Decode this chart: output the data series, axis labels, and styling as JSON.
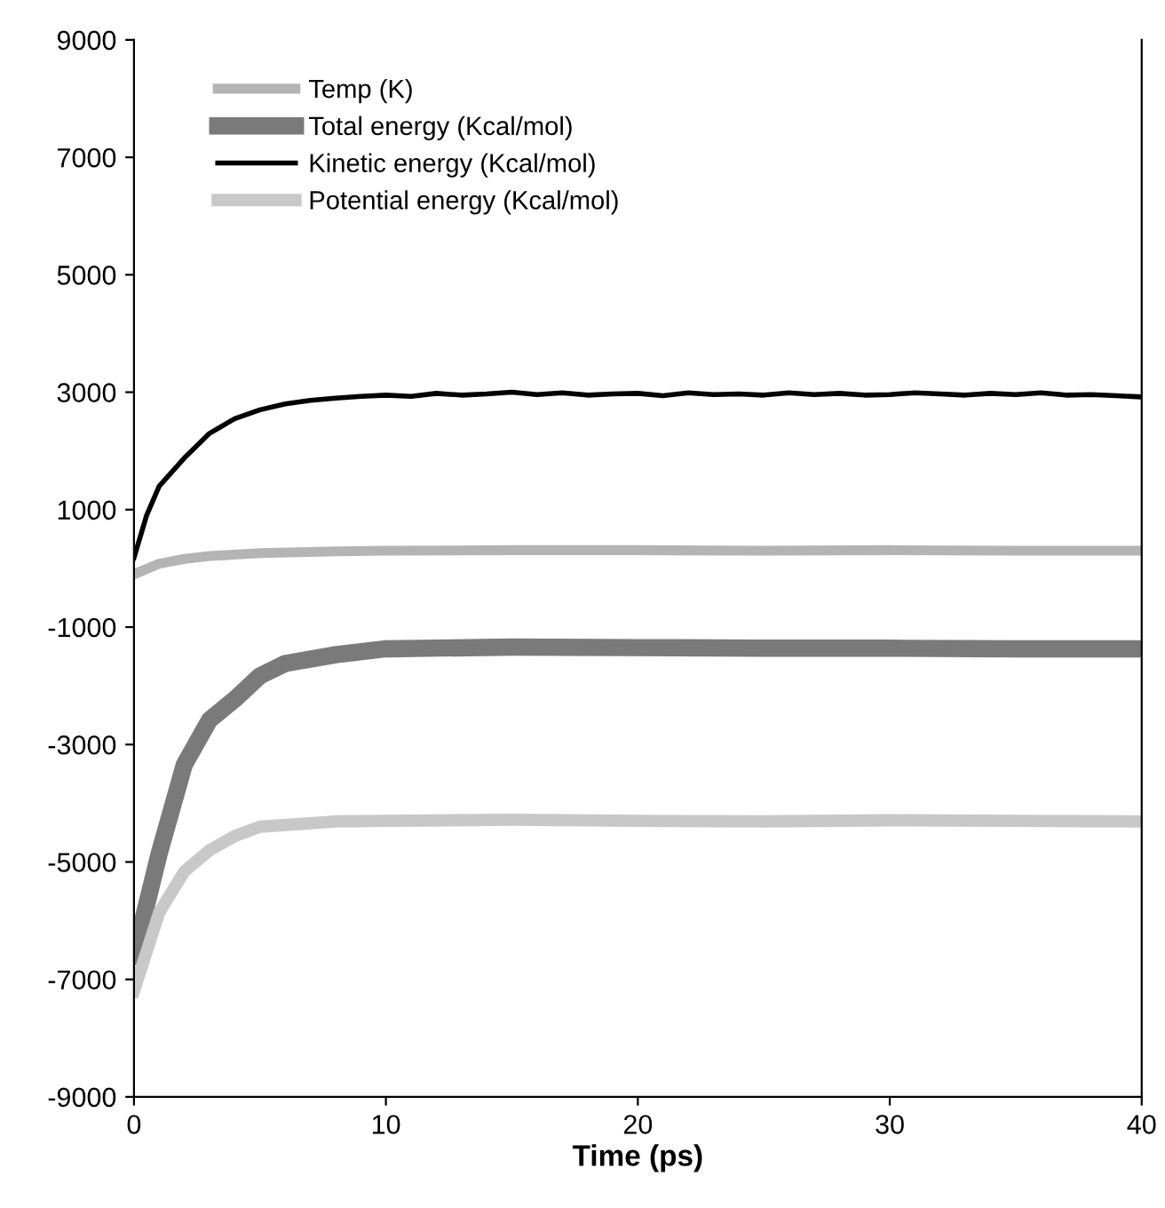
{
  "chart_data": {
    "type": "line",
    "xlabel": "Time (ps)",
    "xlim": [
      0,
      40
    ],
    "xticks": [
      0,
      10,
      20,
      30,
      40
    ],
    "ylim": [
      -9000,
      9000
    ],
    "yticks": [
      -9000,
      -7000,
      -5000,
      -3000,
      -1000,
      1000,
      3000,
      5000,
      7000,
      9000
    ],
    "grid": false,
    "legend": "top left",
    "marker": "none",
    "line_style": "solid",
    "series": [
      {
        "name": "Temp (K)",
        "color": "#b4b4b4",
        "x": [
          0,
          1,
          2,
          3,
          5,
          8,
          10,
          15,
          20,
          25,
          30,
          35,
          40
        ],
        "values": [
          -100,
          80,
          160,
          210,
          260,
          290,
          300,
          310,
          310,
          300,
          310,
          300,
          300
        ]
      },
      {
        "name": "Total energy (Kcal/mol)",
        "color": "#7a7a7a",
        "x": [
          0,
          1,
          2,
          3,
          4,
          5,
          6,
          8,
          10,
          15,
          20,
          25,
          30,
          35,
          40
        ],
        "values": [
          -6600,
          -4860,
          -3340,
          -2580,
          -2230,
          -1830,
          -1620,
          -1470,
          -1370,
          -1340,
          -1350,
          -1360,
          -1360,
          -1370,
          -1370
        ]
      },
      {
        "name": "Kinetic energy (Kcal/mol)",
        "color": "#000000",
        "x": [
          0,
          0.5,
          1,
          2,
          3,
          4,
          5,
          6,
          7,
          8,
          9,
          10,
          11,
          12,
          13,
          14,
          15,
          16,
          17,
          18,
          19,
          20,
          21,
          22,
          23,
          24,
          25,
          26,
          27,
          28,
          29,
          30,
          31,
          32,
          33,
          34,
          35,
          36,
          37,
          38,
          39,
          40
        ],
        "values": [
          180,
          900,
          1400,
          1880,
          2300,
          2550,
          2700,
          2800,
          2860,
          2900,
          2930,
          2950,
          2930,
          2980,
          2950,
          2970,
          3000,
          2960,
          2990,
          2950,
          2970,
          2980,
          2940,
          2990,
          2960,
          2970,
          2950,
          2990,
          2960,
          2980,
          2950,
          2960,
          2990,
          2970,
          2950,
          2980,
          2960,
          2990,
          2950,
          2960,
          2940,
          2920
        ]
      },
      {
        "name": "Potential energy (Kcal/mol)",
        "color": "#c8c8c8",
        "x": [
          0,
          1,
          2,
          3,
          4,
          5,
          8,
          10,
          15,
          20,
          25,
          30,
          35,
          40
        ],
        "values": [
          -7200,
          -5860,
          -5160,
          -4800,
          -4560,
          -4400,
          -4310,
          -4300,
          -4280,
          -4300,
          -4310,
          -4290,
          -4300,
          -4310
        ]
      }
    ]
  }
}
